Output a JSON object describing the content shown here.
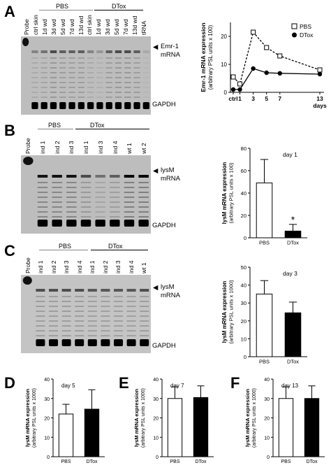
{
  "panels": {
    "A": {
      "letter": "A",
      "groups": {
        "pbs": "PBS",
        "dtox": "DTox"
      },
      "lanes": [
        "Probe",
        "ctrl skin",
        "1d wd",
        "3d wd",
        "5d wd",
        "7d wd",
        "13d wd",
        "ctrl skin",
        "1d wd",
        "3d wd",
        "5d wd",
        "7d wd",
        "13d wd",
        "tRNA"
      ],
      "band_label": "Emr-1\nmRNA",
      "band_label_1": "Emr-1",
      "band_label_2": "mRNA",
      "loading_label": "GAPDH"
    },
    "B": {
      "letter": "B",
      "groups": {
        "pbs": "PBS",
        "dtox": "DTox"
      },
      "lanes": [
        "Probe",
        "ind 1",
        "ind 2",
        "ind 3",
        "ind 1",
        "ind 3",
        "ind 4",
        "wt 1",
        "wt 2"
      ],
      "band_label_1": "lysM",
      "band_label_2": "mRNA",
      "loading_label": "GAPDH"
    },
    "C": {
      "letter": "C",
      "groups": {
        "pbs": "PBS",
        "dtox": "DTox"
      },
      "lanes": [
        "Probe",
        "ind 1",
        "ind 2",
        "ind 3",
        "ind 4",
        "ind 1",
        "ind 2",
        "ind 3",
        "ind 4",
        "wt 1"
      ],
      "band_label_1": "lysM",
      "band_label_2": "mRNA",
      "loading_label": "GAPDH"
    },
    "D": {
      "letter": "D"
    },
    "E": {
      "letter": "E"
    },
    "F": {
      "letter": "F"
    }
  },
  "chart_data": [
    {
      "id": "A",
      "type": "line",
      "ylabel": "Emr-1 mRNA expression\n(arbitrary PSL units x 100)",
      "ylabel_1": "Emr-1 mRNA expression",
      "ylabel_2": "(arbitrary PSL units x 100)",
      "x_ticks": [
        "ctrl",
        "1",
        "3",
        "5",
        "7",
        "13"
      ],
      "x_positions": [
        0,
        1,
        3,
        5,
        7,
        13
      ],
      "xunit": "days",
      "ylim": [
        0,
        25
      ],
      "y_ticks": [
        0,
        10,
        20
      ],
      "series": [
        {
          "name": "PBS",
          "style": "dashed",
          "marker": "open-square",
          "values": [
            5.5,
            3,
            21.5,
            16,
            13,
            8
          ]
        },
        {
          "name": "DTox",
          "style": "solid",
          "marker": "filled-circle",
          "values": [
            1,
            1,
            8.5,
            7,
            6.8,
            6.5
          ]
        }
      ],
      "legend_position": "top-right"
    },
    {
      "id": "B",
      "type": "bar",
      "ylabel": "lysM mRNA expression\n(arbitrary PSL units x 100)",
      "ylabel_1": "lysM mRNA expression",
      "ylabel_2": "(arbitrary PSL units x 100)",
      "annotation": "day 1",
      "categories": [
        "PBS",
        "DTox"
      ],
      "values": [
        49,
        6
      ],
      "errors": [
        21,
        6
      ],
      "significance": [
        "",
        "*"
      ],
      "ylim": [
        0,
        80
      ],
      "y_ticks": [
        0,
        20,
        40,
        60,
        80
      ],
      "fills": [
        "#ffffff",
        "#000000"
      ]
    },
    {
      "id": "C",
      "type": "bar",
      "ylabel": "lysM mRNA expression\n(arbitrary PSL units x 1000)",
      "ylabel_1": "lysM mRNA expression",
      "ylabel_2": "(arbitrary PSL units x 1000)",
      "annotation": "day 3",
      "categories": [
        "PBS",
        "DTox"
      ],
      "values": [
        35,
        24.5
      ],
      "errors": [
        7.5,
        6
      ],
      "ylim": [
        0,
        50
      ],
      "y_ticks": [
        0,
        10,
        20,
        30,
        40,
        50
      ],
      "fills": [
        "#ffffff",
        "#000000"
      ]
    },
    {
      "id": "D",
      "type": "bar",
      "ylabel": "lysM mRNA expression\n(arbitrary PSL units x 1000)",
      "ylabel_1": "lysM mRNA expression",
      "ylabel_2": "(arbitrary PSL units x 1000)",
      "annotation": "day 5",
      "categories": [
        "PBS",
        "DTox"
      ],
      "values": [
        22,
        24.5
      ],
      "errors": [
        5,
        10
      ],
      "ylim": [
        0,
        40
      ],
      "y_ticks": [
        0,
        10,
        20,
        30,
        40
      ],
      "fills": [
        "#ffffff",
        "#000000"
      ]
    },
    {
      "id": "E",
      "type": "bar",
      "ylabel": "lysM mRNA expression\n(arbitrary PSL units x 1000)",
      "ylabel_1": "lysM mRNA expression",
      "ylabel_2": "(arbitrary PSL units x 1000)",
      "annotation": "day 7",
      "categories": [
        "PBS",
        "DTox"
      ],
      "values": [
        30,
        30.5
      ],
      "errors": [
        6,
        6
      ],
      "ylim": [
        0,
        40
      ],
      "y_ticks": [
        0,
        10,
        20,
        30,
        40
      ],
      "fills": [
        "#ffffff",
        "#000000"
      ]
    },
    {
      "id": "F",
      "type": "bar",
      "ylabel": "lysM mRNA expression\n(arbitrary PSL units x 1000)",
      "ylabel_1": "lysM mRNA expression",
      "ylabel_2": "(arbitrary PSL units x 1000)",
      "annotation": "day 13",
      "categories": [
        "PBS",
        "DTox"
      ],
      "values": [
        30,
        30
      ],
      "errors": [
        6,
        6.5
      ],
      "ylim": [
        0,
        40
      ],
      "y_ticks": [
        0,
        10,
        20,
        30,
        40
      ],
      "fills": [
        "#ffffff",
        "#000000"
      ]
    }
  ]
}
